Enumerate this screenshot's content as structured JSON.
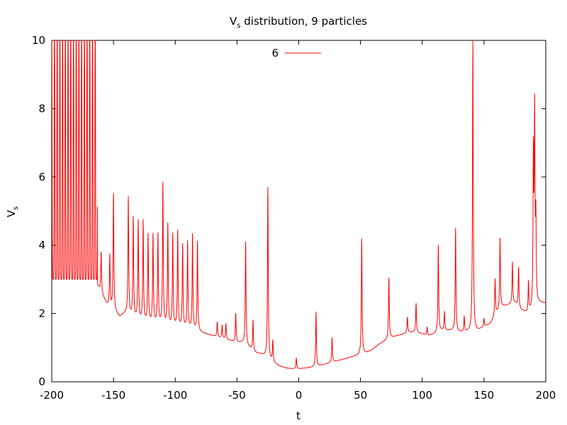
{
  "chart_data": {
    "type": "line",
    "title": {
      "main": "V",
      "sub": "s",
      "rest": " distribution, 9 particles"
    },
    "xlabel": "t",
    "ylabel": {
      "main": "V",
      "sub": "s"
    },
    "xlim": [
      -200,
      200
    ],
    "ylim": [
      0,
      10
    ],
    "grid": false,
    "legend_position": "top-center",
    "x_tick_labels": [
      "-200",
      "-150",
      "-100",
      "-50",
      "0",
      "50",
      "100",
      "150",
      "200"
    ],
    "y_tick_labels": [
      "0",
      "2",
      "4",
      "6",
      "8",
      "10"
    ],
    "series": [
      {
        "name": "6",
        "color": "#ff0000",
        "baseline": [
          [
            -200,
            3.2
          ],
          [
            -190,
            3.15
          ],
          [
            -180,
            3.05
          ],
          [
            -170,
            3.0
          ],
          [
            -165,
            3.0
          ],
          [
            -160,
            2.6
          ],
          [
            -155,
            2.25
          ],
          [
            -150,
            2.1
          ],
          [
            -145,
            1.9
          ],
          [
            -140,
            2.0
          ],
          [
            -135,
            1.9
          ],
          [
            -130,
            1.8
          ],
          [
            -125,
            1.75
          ],
          [
            -120,
            1.72
          ],
          [
            -115,
            1.7
          ],
          [
            -110,
            1.65
          ],
          [
            -105,
            1.62
          ],
          [
            -100,
            1.6
          ],
          [
            -95,
            1.58
          ],
          [
            -90,
            1.55
          ],
          [
            -85,
            1.5
          ],
          [
            -80,
            1.45
          ],
          [
            -75,
            1.4
          ],
          [
            -70,
            1.35
          ],
          [
            -65,
            1.3
          ],
          [
            -60,
            1.25
          ],
          [
            -55,
            1.2
          ],
          [
            -50,
            1.15
          ],
          [
            -45,
            1.15
          ],
          [
            -40,
            1.0
          ],
          [
            -35,
            0.85
          ],
          [
            -30,
            0.8
          ],
          [
            -25,
            0.7
          ],
          [
            -20,
            0.55
          ],
          [
            -15,
            0.45
          ],
          [
            -10,
            0.4
          ],
          [
            -5,
            0.38
          ],
          [
            0,
            0.38
          ],
          [
            5,
            0.4
          ],
          [
            10,
            0.42
          ],
          [
            15,
            0.45
          ],
          [
            20,
            0.5
          ],
          [
            25,
            0.55
          ],
          [
            30,
            0.6
          ],
          [
            35,
            0.65
          ],
          [
            40,
            0.7
          ],
          [
            45,
            0.75
          ],
          [
            50,
            0.8
          ],
          [
            55,
            0.85
          ],
          [
            60,
            0.95
          ],
          [
            65,
            1.1
          ],
          [
            70,
            1.2
          ],
          [
            75,
            1.3
          ],
          [
            80,
            1.35
          ],
          [
            85,
            1.4
          ],
          [
            90,
            1.45
          ],
          [
            95,
            1.45
          ],
          [
            100,
            1.4
          ],
          [
            105,
            1.35
          ],
          [
            110,
            1.4
          ],
          [
            115,
            1.5
          ],
          [
            120,
            1.5
          ],
          [
            125,
            1.5
          ],
          [
            130,
            1.45
          ],
          [
            135,
            1.45
          ],
          [
            140,
            1.5
          ],
          [
            145,
            1.5
          ],
          [
            150,
            1.6
          ],
          [
            155,
            1.7
          ],
          [
            160,
            2.0
          ],
          [
            165,
            2.2
          ],
          [
            170,
            2.25
          ],
          [
            175,
            2.3
          ],
          [
            180,
            2.1
          ],
          [
            185,
            2.0
          ],
          [
            190,
            2.1
          ],
          [
            195,
            2.3
          ],
          [
            200,
            2.3
          ]
        ],
        "oscillation_band": {
          "x_from": -200,
          "x_to": -163,
          "period": 2.2,
          "y_low": 3.0,
          "y_high": 10
        },
        "peaks": [
          [
            -160,
            3.8
          ],
          [
            -153,
            3.7
          ],
          [
            -150,
            5.5
          ],
          [
            -138,
            5.4
          ],
          [
            -134,
            4.8
          ],
          [
            -130,
            4.7
          ],
          [
            -126,
            4.7
          ],
          [
            -122,
            4.3
          ],
          [
            -118,
            4.3
          ],
          [
            -114,
            4.3
          ],
          [
            -110,
            5.8
          ],
          [
            -106,
            4.6
          ],
          [
            -102,
            4.3
          ],
          [
            -98,
            4.4
          ],
          [
            -94,
            4.0
          ],
          [
            -90,
            4.1
          ],
          [
            -86,
            4.3
          ],
          [
            -82,
            4.1
          ],
          [
            -66,
            1.75
          ],
          [
            -62,
            1.65
          ],
          [
            -59,
            1.7
          ],
          [
            -51,
            2.0
          ],
          [
            -43,
            4.1
          ],
          [
            -37,
            1.8
          ],
          [
            -25,
            5.7
          ],
          [
            -21,
            1.2
          ],
          [
            -2,
            0.7
          ],
          [
            14,
            2.05
          ],
          [
            27,
            1.3
          ],
          [
            51,
            4.2
          ],
          [
            73,
            3.05
          ],
          [
            88,
            1.9
          ],
          [
            95,
            2.3
          ],
          [
            104,
            1.6
          ],
          [
            113,
            4.0
          ],
          [
            118,
            2.05
          ],
          [
            127,
            4.5
          ],
          [
            134,
            1.9
          ],
          [
            141,
            10.0
          ],
          [
            150,
            1.85
          ],
          [
            159,
            3.0
          ],
          [
            163,
            4.2
          ],
          [
            173,
            3.5
          ],
          [
            178,
            3.35
          ],
          [
            186,
            2.9
          ],
          [
            190,
            6.5
          ],
          [
            191,
            7.7
          ],
          [
            192,
            4.6
          ]
        ]
      }
    ]
  }
}
